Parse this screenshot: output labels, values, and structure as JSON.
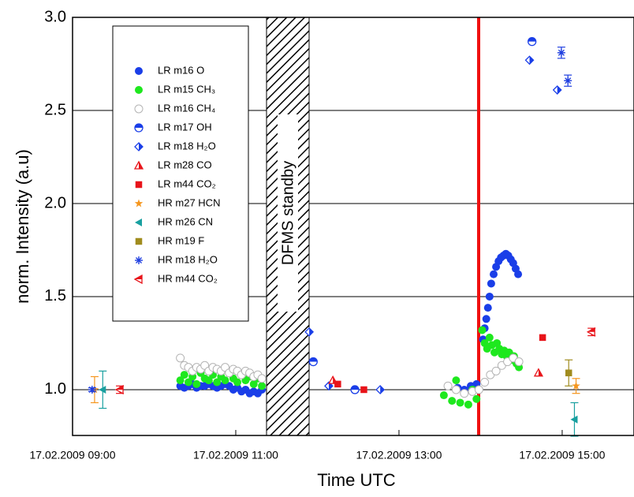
{
  "chart_data": {
    "type": "scatter",
    "xlabel": "Time UTC",
    "ylabel": "norm. Intensity (a.u)",
    "annotations": [
      "DFMS standby"
    ],
    "xlim": [
      9.0,
      15.88
    ],
    "ylim": [
      0.754,
      3.0
    ],
    "xticks": [
      {
        "value": 9,
        "label": "17.02.2009 09:00"
      },
      {
        "value": 11,
        "label": "17.02.2009 11:00"
      },
      {
        "value": 13,
        "label": "17.02.2009 13:00"
      },
      {
        "value": 15,
        "label": "17.02.2009 15:00"
      }
    ],
    "yticks": [
      {
        "value": 1,
        "label": "1.0"
      },
      {
        "value": 1.5,
        "label": "1.5"
      },
      {
        "value": 2,
        "label": "2.0"
      },
      {
        "value": 2.5,
        "label": "2.5"
      },
      {
        "value": 3,
        "label": "3.0"
      }
    ],
    "grid": true,
    "series": [
      {
        "name": "LR m16 O",
        "color": "#1a3ee8",
        "marker": "circle",
        "x": [
          10.32,
          10.37,
          10.42,
          10.47,
          10.52,
          10.57,
          10.62,
          10.67,
          10.72,
          10.77,
          10.82,
          10.87,
          10.92,
          10.97,
          11.02,
          11.07,
          11.12,
          11.17,
          11.22,
          11.27,
          11.32,
          13.72,
          13.8,
          13.88,
          13.95,
          14.03,
          14.05,
          14.07,
          14.09,
          14.11,
          14.13,
          14.16,
          14.19,
          14.22,
          14.25,
          14.28,
          14.31,
          14.34,
          14.37,
          14.4,
          14.43,
          14.46
        ],
        "values": [
          1.02,
          1.01,
          1.02,
          1.03,
          1.01,
          1.02,
          1.02,
          1.03,
          1.02,
          1.01,
          1.02,
          1.03,
          1.02,
          1.0,
          1.01,
          0.99,
          1.0,
          0.98,
          0.99,
          0.98,
          1.0,
          1.01,
          1.0,
          1.02,
          1.03,
          1.27,
          1.33,
          1.38,
          1.44,
          1.5,
          1.57,
          1.62,
          1.66,
          1.69,
          1.71,
          1.72,
          1.73,
          1.72,
          1.7,
          1.68,
          1.65,
          1.62
        ]
      },
      {
        "name": "LR m15 CH₃",
        "color": "#1ee81e",
        "marker": "circle",
        "x": [
          10.32,
          10.37,
          10.42,
          10.47,
          10.52,
          10.57,
          10.62,
          10.67,
          10.72,
          10.77,
          10.82,
          10.87,
          10.92,
          10.97,
          11.02,
          11.07,
          11.12,
          11.17,
          11.22,
          11.27,
          11.32,
          13.55,
          13.6,
          13.65,
          13.7,
          13.75,
          13.8,
          13.85,
          13.9,
          13.95,
          14.02,
          14.05,
          14.08,
          14.11,
          14.14,
          14.17,
          14.2,
          14.23,
          14.26,
          14.29,
          14.32,
          14.35,
          14.38,
          14.41,
          14.44,
          14.47
        ],
        "values": [
          1.05,
          1.08,
          1.04,
          1.07,
          1.03,
          1.09,
          1.06,
          1.05,
          1.08,
          1.04,
          1.07,
          1.05,
          1.09,
          1.06,
          1.04,
          1.08,
          1.05,
          1.07,
          1.03,
          1.06,
          1.02,
          0.97,
          1.02,
          0.94,
          1.05,
          0.93,
          0.98,
          0.92,
          1.0,
          0.95,
          1.32,
          1.25,
          1.22,
          1.28,
          1.24,
          1.2,
          1.25,
          1.22,
          1.19,
          1.21,
          1.18,
          1.2,
          1.16,
          1.18,
          1.14,
          1.12
        ]
      },
      {
        "name": "LR m16 CH₄",
        "color": "#b4b4b4",
        "marker": "circle-open",
        "x": [
          10.32,
          10.37,
          10.42,
          10.47,
          10.52,
          10.57,
          10.62,
          10.67,
          10.72,
          10.77,
          10.82,
          10.87,
          10.92,
          10.97,
          11.02,
          11.07,
          11.12,
          11.17,
          11.22,
          11.27,
          11.32,
          13.6,
          13.7,
          13.8,
          13.9,
          13.98,
          14.05,
          14.12,
          14.19,
          14.26,
          14.33,
          14.4,
          14.47
        ],
        "values": [
          1.17,
          1.13,
          1.12,
          1.1,
          1.12,
          1.11,
          1.13,
          1.1,
          1.12,
          1.11,
          1.1,
          1.12,
          1.09,
          1.11,
          1.1,
          1.08,
          1.1,
          1.09,
          1.07,
          1.08,
          1.06,
          1.02,
          1.0,
          0.98,
          0.99,
          1.0,
          1.04,
          1.08,
          1.1,
          1.13,
          1.15,
          1.17,
          1.15
        ]
      },
      {
        "name": "LR m17 OH",
        "color": "#1a3ee8",
        "marker": "half-circle",
        "x": [
          11.95,
          12.46,
          14.63
        ],
        "values": [
          1.15,
          1.0,
          2.87
        ]
      },
      {
        "name": "LR m18 H₂O",
        "color": "#1a3ee8",
        "marker": "half-diamond",
        "x": [
          11.9,
          12.14,
          12.77,
          14.6,
          14.94
        ],
        "values": [
          1.31,
          1.02,
          1.0,
          2.77,
          2.61
        ]
      },
      {
        "name": "LR m28 CO",
        "color": "#e8141a",
        "marker": "triangle",
        "x": [
          12.19,
          14.71
        ],
        "values": [
          1.05,
          1.09
        ]
      },
      {
        "name": "LR m44 CO₂",
        "color": "#e8141a",
        "marker": "square",
        "x": [
          12.25,
          12.57,
          14.76
        ],
        "values": [
          1.03,
          1.0,
          1.28
        ]
      },
      {
        "name": "HR m27 HCN",
        "color": "#f5961e",
        "marker": "star",
        "x": [
          9.27,
          15.17
        ],
        "values": [
          1.0,
          1.02
        ],
        "errors": [
          0.07,
          0.04
        ]
      },
      {
        "name": "HR m26 CN",
        "color": "#19a0a0",
        "marker": "triangle-left",
        "x": [
          9.37,
          15.15
        ],
        "values": [
          1.0,
          0.84
        ],
        "errors": [
          0.1,
          0.09
        ]
      },
      {
        "name": "HR m19 F",
        "color": "#a08c1e",
        "marker": "square",
        "x": [
          15.08
        ],
        "values": [
          1.09
        ],
        "errors": [
          0.07
        ]
      },
      {
        "name": "HR m18 H₂O",
        "color": "#1f3fe0",
        "marker": "asterisk",
        "x": [
          9.24,
          14.99,
          15.07
        ],
        "values": [
          1.0,
          2.81,
          2.66
        ],
        "errors": [
          0.01,
          0.03,
          0.03
        ]
      },
      {
        "name": "HR m44 CO₂",
        "color": "#e8141a",
        "marker": "half-triangle-left",
        "x": [
          9.58,
          15.36
        ],
        "values": [
          1.0,
          1.31
        ],
        "errors": [
          0.02,
          0.02
        ]
      }
    ]
  }
}
